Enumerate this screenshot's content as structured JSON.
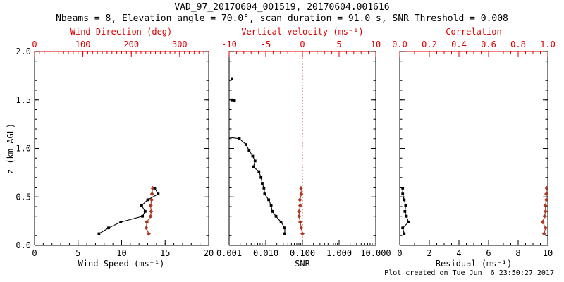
{
  "title": "VAD_97_20170604_001519, 20170604.001616",
  "subtitle": "Nbeams = 8, Elevation angle = 70.0°, scan duration = 91.0 s, SNR Threshold = 0.008",
  "footer": "Plot created on Tue Jun  6 23:50:27 2017",
  "colors": {
    "axis_red": "#dd0000",
    "data_red": "#ae3a26",
    "black": "#000000",
    "background": "#ffffff"
  },
  "y_axis": {
    "label": "z (km AGL)",
    "min": 0,
    "max": 2,
    "tick_values": [
      0.0,
      0.5,
      1.0,
      1.5,
      2.0
    ],
    "tick_labels": [
      "0.0",
      "0.5",
      "1.0",
      "1.5",
      "2.0"
    ],
    "minor_step": 0.1
  },
  "chart_data": [
    {
      "name": "wind-panel",
      "type": "scatter",
      "bottom_axis": {
        "title": "Wind Speed (ms⁻¹)",
        "min": 0,
        "max": 20,
        "tick_values": [
          0,
          5,
          10,
          15,
          20
        ],
        "tick_labels": [
          "0",
          "5",
          "10",
          "15",
          "20"
        ],
        "minor_step": 1
      },
      "top_axis": {
        "title": "Wind Direction (deg)",
        "min": 0,
        "max": 360,
        "tick_values": [
          0,
          100,
          200,
          300
        ],
        "tick_labels": [
          "0",
          "100",
          "200",
          "300"
        ],
        "minor_step": 10
      },
      "series": [
        {
          "name": "wind-speed",
          "axis": "bottom",
          "color": "black",
          "marker": "square",
          "line": true,
          "z": [
            0.12,
            0.18,
            0.24,
            0.3,
            0.35,
            0.41,
            0.47,
            0.53,
            0.59
          ],
          "values": [
            7.4,
            8.5,
            9.9,
            12.4,
            12.7,
            12.3,
            13.0,
            14.2,
            13.8
          ]
        },
        {
          "name": "wind-direction",
          "axis": "top",
          "color": "red",
          "marker": "diamond",
          "line": true,
          "z": [
            0.12,
            0.18,
            0.24,
            0.3,
            0.35,
            0.41,
            0.47,
            0.53,
            0.59
          ],
          "values": [
            236,
            231,
            232,
            240,
            241,
            240,
            242,
            243,
            244
          ]
        }
      ]
    },
    {
      "name": "snr-panel",
      "type": "scatter",
      "bottom_axis": {
        "title": "SNR",
        "log": true,
        "min": 0.001,
        "max": 10,
        "tick_values": [
          0.001,
          0.01,
          0.1,
          1,
          10
        ],
        "tick_labels": [
          "0.001",
          "0.010",
          "0.100",
          "1.000",
          "10.000"
        ]
      },
      "top_axis": {
        "title": "Vertical velocity (ms⁻¹)",
        "min": -10,
        "max": 10,
        "tick_values": [
          -10,
          -5,
          0,
          5,
          10
        ],
        "tick_labels": [
          "-10",
          "-5",
          "0",
          "5",
          "10"
        ],
        "minor_step": 1
      },
      "refline": {
        "axis": "top",
        "value": 0,
        "style": "dotted",
        "color": "red"
      },
      "series": [
        {
          "name": "snr-profile",
          "axis": "bottom",
          "color": "black",
          "marker": "square",
          "line": true,
          "edge_last": true,
          "z": [
            0.12,
            0.18,
            0.24,
            0.3,
            0.35,
            0.41,
            0.47,
            0.53,
            0.59,
            0.64,
            0.7,
            0.76,
            0.81,
            0.87,
            0.92,
            0.98,
            1.04,
            1.1,
            1.113
          ],
          "values": [
            0.033,
            0.033,
            0.026,
            0.019,
            0.015,
            0.014,
            0.012,
            0.0093,
            0.0089,
            0.008,
            0.0074,
            0.0065,
            0.0046,
            0.0051,
            0.0044,
            0.0035,
            0.0029,
            0.0019,
            0.001
          ]
        },
        {
          "name": "snr-isolated-points",
          "axis": "bottom",
          "color": "black",
          "marker": "square",
          "line": false,
          "z": [
            1.495,
            1.5,
            1.72
          ],
          "values": [
            0.0014,
            0.0012,
            0.0012
          ]
        },
        {
          "name": "vertical-velocity",
          "axis": "top",
          "color": "red",
          "marker": "diamond",
          "line": true,
          "z": [
            0.12,
            0.18,
            0.24,
            0.3,
            0.35,
            0.41,
            0.47,
            0.53,
            0.59
          ],
          "values": [
            0.0,
            -0.15,
            -0.3,
            -0.45,
            -0.45,
            -0.3,
            -0.35,
            -0.15,
            -0.2
          ]
        }
      ]
    },
    {
      "name": "residual-panel",
      "type": "scatter",
      "bottom_axis": {
        "title": "Residual (ms⁻¹)",
        "min": 0,
        "max": 10,
        "tick_values": [
          0,
          2,
          4,
          6,
          8,
          10
        ],
        "tick_labels": [
          "0",
          "2",
          "4",
          "6",
          "8",
          "10"
        ],
        "minor_step": 0.5
      },
      "top_axis": {
        "title": "Correlation",
        "min": 0,
        "max": 1,
        "tick_values": [
          0.0,
          0.2,
          0.4,
          0.6,
          0.8,
          1.0
        ],
        "tick_labels": [
          "0.0",
          "0.2",
          "0.4",
          "0.6",
          "0.8",
          "1.0"
        ],
        "minor_step": 0.05
      },
      "series": [
        {
          "name": "residual",
          "axis": "bottom",
          "color": "black",
          "marker": "square",
          "line": true,
          "z": [
            0.12,
            0.18,
            0.24,
            0.3,
            0.35,
            0.41,
            0.47,
            0.53,
            0.59
          ],
          "values": [
            0.3,
            0.2,
            0.6,
            0.45,
            0.35,
            0.4,
            0.3,
            0.2,
            0.2
          ]
        },
        {
          "name": "correlation",
          "axis": "top",
          "color": "red",
          "marker": "diamond",
          "line": true,
          "z": [
            0.12,
            0.18,
            0.24,
            0.3,
            0.35,
            0.41,
            0.47,
            0.53,
            0.59
          ],
          "values": [
            0.975,
            0.985,
            0.965,
            0.978,
            0.985,
            0.983,
            0.99,
            0.99,
            0.992
          ]
        }
      ]
    }
  ]
}
